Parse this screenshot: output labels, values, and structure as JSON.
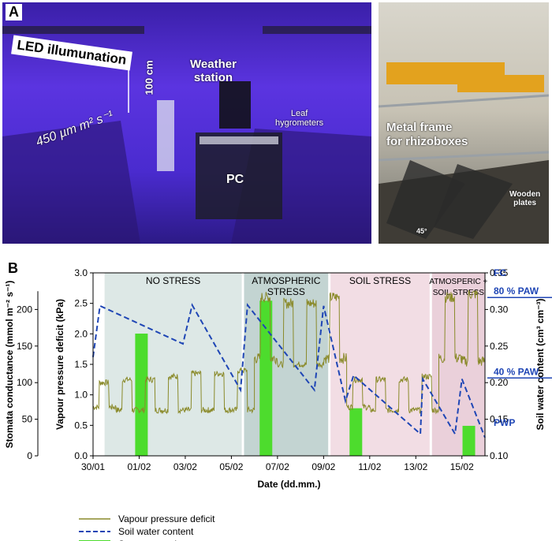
{
  "panel_a": {
    "letter": "A",
    "photo_left_labels": {
      "led": "LED illumunation",
      "height": "100 cm",
      "weather": "Weather\nstation",
      "leaf": "Leaf\nhygrometers",
      "intensity": "450 µm m² s⁻¹",
      "pc": "PC"
    },
    "photo_right_labels": {
      "frame": "Metal frame\nfor rhizoboxes",
      "wooden": "Wooden\nplates",
      "angle": "45°"
    }
  },
  "panel_b": {
    "letter": "B"
  },
  "chart_data": {
    "type": "line",
    "xlabel": "Date (dd.mm.)",
    "x_ticks": [
      "30/01",
      "01/02",
      "03/02",
      "05/02",
      "07/02",
      "09/02",
      "11/02",
      "13/02",
      "15/02"
    ],
    "x_range_days": [
      0,
      17
    ],
    "left_axis_1": {
      "label": "Stomata conductance (mmol m⁻² s⁻¹)",
      "range": [
        0,
        250
      ],
      "ticks": [
        "0",
        "50",
        "100",
        "150",
        "200"
      ]
    },
    "left_axis_2": {
      "label": "Vapour pressure deficit (kPa)",
      "range": [
        0,
        3
      ],
      "ticks": [
        "0.0",
        "0.5",
        "1.0",
        "1.5",
        "2.0",
        "2.5",
        "3.0"
      ]
    },
    "right_axis": {
      "label": "Soil water content (cm³ cm⁻³)",
      "range": [
        0.1,
        0.35
      ],
      "ticks": [
        "0.10",
        "0.15",
        "0.20",
        "0.25",
        "0.30",
        "0.35"
      ],
      "markers": [
        {
          "label": "FC",
          "value": 0.35
        },
        {
          "label": "80 % PAW",
          "value": 0.325
        },
        {
          "label": "40 % PAW",
          "value": 0.215
        },
        {
          "label": "PWP",
          "value": 0.145
        }
      ]
    },
    "phases": [
      {
        "label": "NO STRESS",
        "start": 0.5,
        "end": 6.45,
        "color": "#dde8e6"
      },
      {
        "label": "ATMOSPHERIC\nSTRESS",
        "start": 6.55,
        "end": 10.2,
        "color": "#c3d4d2"
      },
      {
        "label": "SOIL STRESS",
        "start": 10.3,
        "end": 14.6,
        "color": "#f2dde4"
      },
      {
        "label": "ATMOSPERIC +\nSOIL STRESS",
        "start": 14.7,
        "end": 17,
        "color": "#ead0da"
      }
    ],
    "series": [
      {
        "name": "Soil water content",
        "axis": "right",
        "color": "#1f46b5",
        "x": [
          0,
          0.3,
          3.9,
          4.3,
          6.4,
          6.7,
          9.6,
          10.0,
          10.95,
          11.3,
          14.2,
          14.3,
          15.7,
          16.0,
          17.0
        ],
        "y": [
          0.235,
          0.305,
          0.253,
          0.306,
          0.19,
          0.306,
          0.19,
          0.305,
          0.175,
          0.21,
          0.13,
          0.205,
          0.13,
          0.205,
          0.125
        ]
      },
      {
        "name": "Vapour pressure deficit",
        "axis": "left_2",
        "color": "#8a8a2a",
        "days": [
          {
            "start": 0.0,
            "low": 0.8,
            "high": 1.2
          },
          {
            "start": 1.0,
            "low": 0.75,
            "high": 1.25
          },
          {
            "start": 2.0,
            "low": 0.75,
            "high": 1.25
          },
          {
            "start": 3.0,
            "low": 0.75,
            "high": 1.3
          },
          {
            "start": 4.0,
            "low": 0.75,
            "high": 1.35
          },
          {
            "start": 5.0,
            "low": 0.75,
            "high": 1.35
          },
          {
            "start": 6.0,
            "low": 0.75,
            "high": 1.4
          },
          {
            "start": 7.0,
            "low": 1.6,
            "high": 2.6
          },
          {
            "start": 8.0,
            "low": 1.5,
            "high": 2.5
          },
          {
            "start": 9.0,
            "low": 1.5,
            "high": 2.5
          },
          {
            "start": 10.0,
            "low": 1.6,
            "high": 2.6
          },
          {
            "start": 11.0,
            "low": 0.8,
            "high": 1.25
          },
          {
            "start": 12.0,
            "low": 0.75,
            "high": 1.25
          },
          {
            "start": 13.0,
            "low": 0.75,
            "high": 1.25
          },
          {
            "start": 14.0,
            "low": 0.75,
            "high": 1.3
          },
          {
            "start": 15.0,
            "low": 1.6,
            "high": 2.6
          },
          {
            "start": 16.0,
            "low": 1.55,
            "high": 2.65
          }
        ]
      },
      {
        "name": "Stomata conductance",
        "axis": "left_1",
        "color": "#4ddc2d",
        "bars": [
          {
            "x": 2.1,
            "value": 167
          },
          {
            "x": 7.5,
            "value": 212
          },
          {
            "x": 11.4,
            "value": 65
          },
          {
            "x": 16.3,
            "value": 41
          }
        ]
      }
    ],
    "legend": [
      {
        "label": "Vapour pressure deficit",
        "style": "line"
      },
      {
        "label": "Soil water content",
        "style": "dashed"
      },
      {
        "label": "Stomata conductance",
        "style": "bar"
      }
    ]
  }
}
